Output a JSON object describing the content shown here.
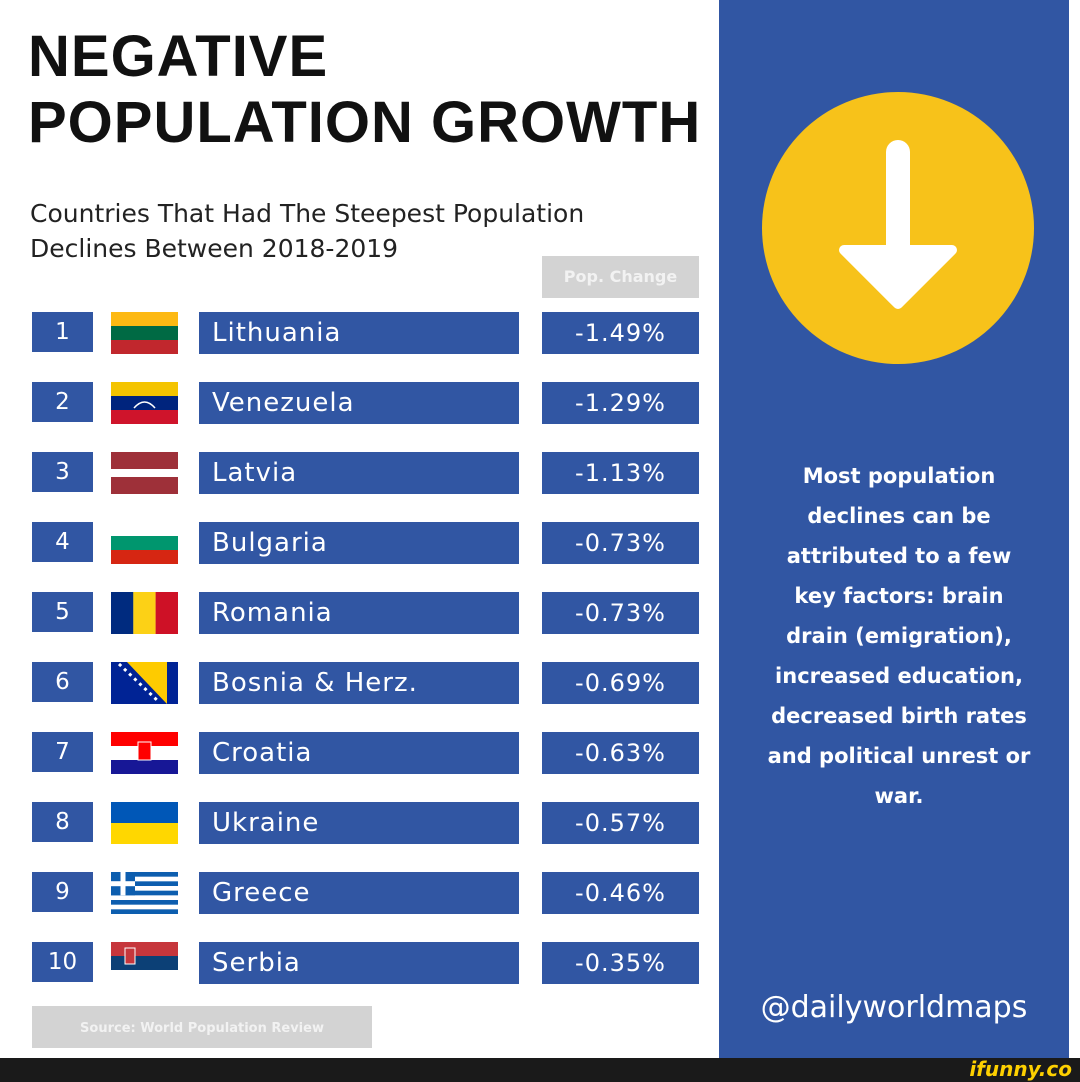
{
  "header": {
    "title_lines": [
      "NEGATIVE",
      "POPULATION GROWTH"
    ],
    "subtitle_lines": [
      "Countries That Had The Steepest Population",
      "Declines Between 2018-2019"
    ]
  },
  "chart_data": {
    "type": "table",
    "column_header": "Pop. Change",
    "rows": [
      {
        "rank": "1",
        "country": "Lithuania",
        "change": "-1.49%",
        "value": -1.49
      },
      {
        "rank": "2",
        "country": "Venezuela",
        "change": "-1.29%",
        "value": -1.29
      },
      {
        "rank": "3",
        "country": "Latvia",
        "change": "-1.13%",
        "value": -1.13
      },
      {
        "rank": "4",
        "country": "Bulgaria",
        "change": "-0.73%",
        "value": -0.73
      },
      {
        "rank": "5",
        "country": "Romania",
        "change": "-0.73%",
        "value": -0.73
      },
      {
        "rank": "6",
        "country": "Bosnia & Herz.",
        "change": "-0.69%",
        "value": -0.69
      },
      {
        "rank": "7",
        "country": "Croatia",
        "change": "-0.63%",
        "value": -0.63
      },
      {
        "rank": "8",
        "country": "Ukraine",
        "change": "-0.57%",
        "value": -0.57
      },
      {
        "rank": "9",
        "country": "Greece",
        "change": "-0.46%",
        "value": -0.46
      },
      {
        "rank": "10",
        "country": "Serbia",
        "change": "-0.35%",
        "value": -0.35
      }
    ]
  },
  "source": "Source: World Population Review",
  "panel": {
    "icon": "down-arrow-icon",
    "text_lines": [
      "Most population",
      "declines can be",
      "attributed to a few",
      "key factors: brain",
      "drain (emigration),",
      "increased education,",
      "decreased birth rates",
      "and political unrest or",
      "war."
    ],
    "handle": "@dailyworldmaps"
  },
  "watermark": "ifunny.co",
  "colors": {
    "accent_blue": "#3156a3",
    "header_gray": "#d3d3d3",
    "circle_yellow": "#f7c21a"
  }
}
